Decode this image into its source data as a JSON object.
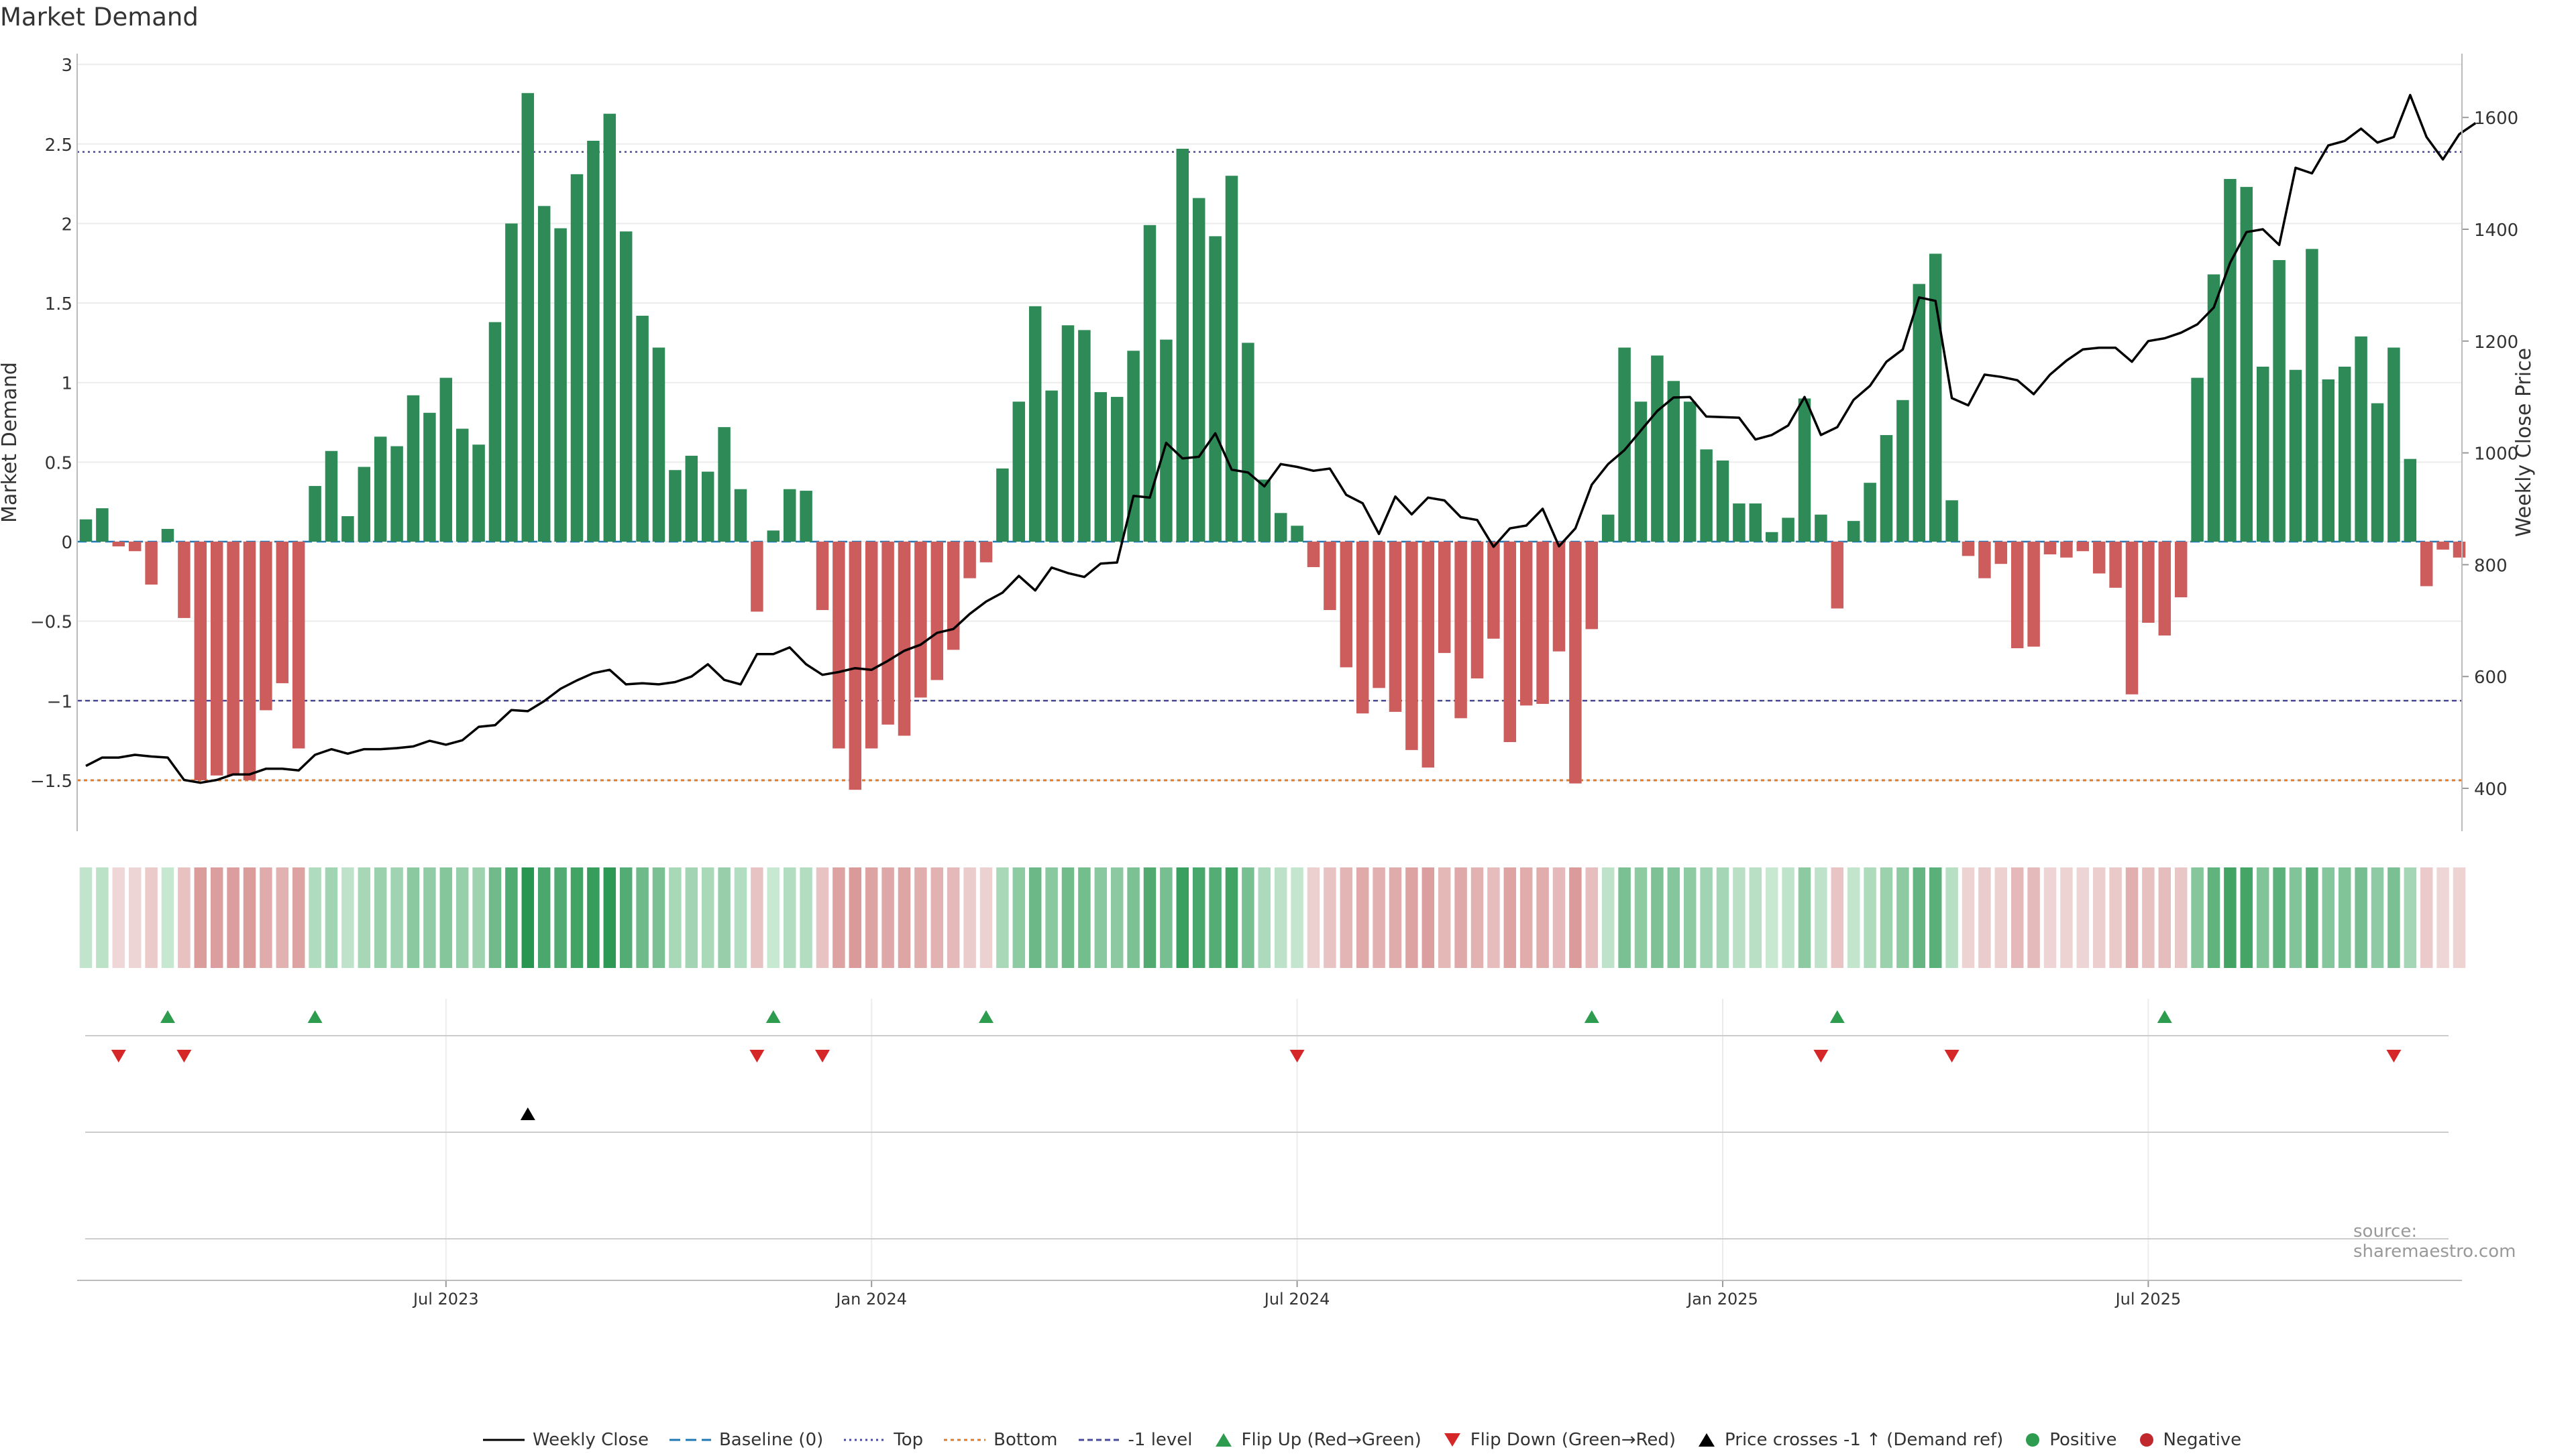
{
  "title": "Market Demand",
  "source": "source: sharemaestro.com",
  "colors": {
    "positive": "#2e8b57",
    "negative": "#cd5c5c",
    "price_line": "#000000",
    "top_line": "#4a4a9c",
    "bottom_line": "#e07b2a",
    "minus1_line": "#4a4a9c",
    "baseline": "#1f77b4",
    "flip_up": "#2e9c4f",
    "flip_down": "#d62728",
    "cross_marker": "#000000"
  },
  "legend": [
    {
      "label": "Weekly Close",
      "icon": "line-solid-black"
    },
    {
      "label": "Baseline (0)",
      "icon": "line-dashed-blue"
    },
    {
      "label": "Top",
      "icon": "line-dotted-navy"
    },
    {
      "label": "Bottom",
      "icon": "line-dotted-orange"
    },
    {
      "label": "-1 level",
      "icon": "line-dotted-navy"
    },
    {
      "label": "Flip Up (Red→Green)",
      "icon": "triangle-up-green"
    },
    {
      "label": "Flip Down (Green→Red)",
      "icon": "triangle-down-red"
    },
    {
      "label": "Price crosses -1 ↑ (Demand ref)",
      "icon": "triangle-up-black"
    },
    {
      "label": "Positive",
      "icon": "dot-green"
    },
    {
      "label": "Negative",
      "icon": "dot-red"
    }
  ],
  "chart_data": {
    "type": "bar+line",
    "title": "Market Demand",
    "ylabel": "Market Demand",
    "y2label": "Weekly Close Price",
    "ylim": [
      -1.8,
      3.0
    ],
    "y2lim": [
      300,
      1700
    ],
    "yticks": [
      3,
      2.5,
      2,
      1.5,
      1,
      0.5,
      0,
      -0.5,
      -1,
      -1.5
    ],
    "ytick_labels": [
      "3",
      "2.5",
      "2",
      "1.5",
      "1",
      "0.5",
      "0",
      "−0.5",
      "−1",
      "−1.5"
    ],
    "y2ticks": [
      1600,
      1400,
      1200,
      1000,
      800,
      600,
      400
    ],
    "y2tick_labels": [
      "1600",
      "1400",
      "1200",
      "1000",
      "800",
      "600",
      "400"
    ],
    "xtick_labels": [
      {
        "label": "Jul 2023",
        "week": 22
      },
      {
        "label": "Jan 2024",
        "week": 48
      },
      {
        "label": "Jul 2024",
        "week": 74
      },
      {
        "label": "Jan 2025",
        "week": 100
      },
      {
        "label": "Jul 2025",
        "week": 126
      }
    ],
    "levels": {
      "top": 2.45,
      "bottom": -1.5,
      "minus1": -1.0,
      "baseline": 0
    },
    "demand": [
      0.14,
      0.21,
      -0.03,
      -0.06,
      -0.27,
      0.08,
      -0.48,
      -1.5,
      -1.47,
      -1.47,
      -1.5,
      -1.06,
      -0.89,
      -1.3,
      0.35,
      0.57,
      0.16,
      0.47,
      0.66,
      0.6,
      0.92,
      0.81,
      1.03,
      0.71,
      0.61,
      1.38,
      2.0,
      2.82,
      2.11,
      1.97,
      2.31,
      2.52,
      2.69,
      1.95,
      1.42,
      1.22,
      0.45,
      0.54,
      0.44,
      0.72,
      0.33,
      -0.44,
      0.07,
      0.33,
      0.32,
      -0.43,
      -1.3,
      -1.56,
      -1.3,
      -1.15,
      -1.22,
      -0.98,
      -0.87,
      -0.68,
      -0.23,
      -0.13,
      0.46,
      0.88,
      1.48,
      0.95,
      1.36,
      1.33,
      0.94,
      0.91,
      1.2,
      1.99,
      1.27,
      2.47,
      2.16,
      1.92,
      2.3,
      1.25,
      0.39,
      0.18,
      0.1,
      -0.16,
      -0.43,
      -0.79,
      -1.08,
      -0.92,
      -1.07,
      -1.31,
      -1.42,
      -0.7,
      -1.11,
      -0.86,
      -0.61,
      -1.26,
      -1.03,
      -1.02,
      -0.69,
      -1.52,
      -0.55,
      0.17,
      1.22,
      0.88,
      1.17,
      1.01,
      0.88,
      0.58,
      0.51,
      0.24,
      0.24,
      0.06,
      0.15,
      0.9,
      0.17,
      -0.42,
      0.13,
      0.37,
      0.67,
      0.89,
      1.62,
      1.81,
      0.26,
      -0.09,
      -0.23,
      -0.14,
      -0.67,
      -0.66,
      -0.08,
      -0.1,
      -0.06,
      -0.2,
      -0.29,
      -0.96,
      -0.51,
      -0.59,
      -0.35,
      1.03,
      1.68,
      2.28,
      2.23,
      1.1,
      1.77,
      1.08,
      1.84,
      1.02,
      1.1,
      1.29,
      0.87,
      1.22,
      0.52,
      -0.28,
      -0.05,
      -0.1
    ],
    "weekly_close": [
      440,
      455,
      455,
      460,
      457,
      455,
      415,
      410,
      415,
      425,
      425,
      435,
      435,
      432,
      460,
      470,
      462,
      470,
      470,
      472,
      475,
      485,
      478,
      486,
      510,
      513,
      540,
      538,
      556,
      578,
      593,
      606,
      612,
      586,
      588,
      586,
      590,
      600,
      622,
      594,
      586,
      640,
      640,
      652,
      622,
      603,
      608,
      615,
      612,
      628,
      646,
      657,
      678,
      685,
      712,
      734,
      750,
      780,
      754,
      795,
      785,
      778,
      802,
      804,
      923,
      920,
      1018,
      990,
      993,
      1035,
      970,
      965,
      940,
      980,
      975,
      968,
      972,
      925,
      910,
      855,
      922,
      890,
      920,
      915,
      885,
      880,
      832,
      865,
      870,
      900,
      833,
      865,
      943,
      980,
      1005,
      1040,
      1075,
      1099,
      1100,
      1065,
      1064,
      1063,
      1024,
      1032,
      1049,
      1100,
      1032,
      1046,
      1095,
      1120,
      1163,
      1185,
      1278,
      1272,
      1098,
      1085,
      1140,
      1136,
      1130,
      1105,
      1140,
      1165,
      1185,
      1188,
      1188,
      1163,
      1200,
      1205,
      1215,
      1230,
      1260,
      1340,
      1395,
      1400,
      1372,
      1510,
      1500,
      1550,
      1558,
      1580,
      1555,
      1565,
      1640,
      1565,
      1525,
      1570,
      1590
    ],
    "flip_up_weeks": [
      5,
      14,
      42,
      55,
      92,
      107,
      127
    ],
    "flip_down_weeks": [
      2,
      6,
      41,
      45,
      74,
      106,
      114,
      141
    ],
    "price_cross_weeks": [
      27
    ]
  }
}
